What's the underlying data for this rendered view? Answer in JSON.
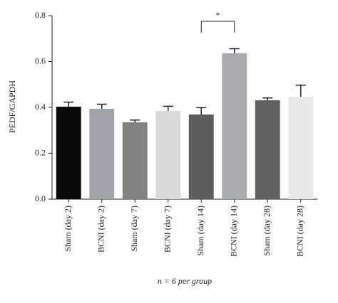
{
  "chart_data": {
    "type": "bar",
    "ylabel": "PEDF/GAPDH",
    "xlabel": "n = 6 per group",
    "categories": [
      "Sham (day 2)",
      "BCNI (day 2)",
      "Sham (day 7)",
      "BCNI (day 7)",
      "Sham (day 14)",
      "BCNI (day 14)",
      "Sham (day 28)",
      "BCNI (day 28)"
    ],
    "values": [
      0.403,
      0.394,
      0.335,
      0.385,
      0.369,
      0.636,
      0.431,
      0.447
    ],
    "errors": [
      0.02,
      0.02,
      0.01,
      0.02,
      0.03,
      0.02,
      0.01,
      0.05
    ],
    "colors": [
      "#0a0a0a",
      "#a2a2aa",
      "#828282",
      "#d9d9d9",
      "#5c5c5c",
      "#a9a9b0",
      "#606060",
      "#e8e8e8"
    ],
    "ylim": [
      0,
      0.8
    ],
    "yticks": [
      {
        "value": 0,
        "label": "0.0"
      },
      0.2,
      0.4,
      0.6,
      0.8
    ],
    "grid": false,
    "annotations": [
      {
        "text": "*"
      }
    ]
  }
}
